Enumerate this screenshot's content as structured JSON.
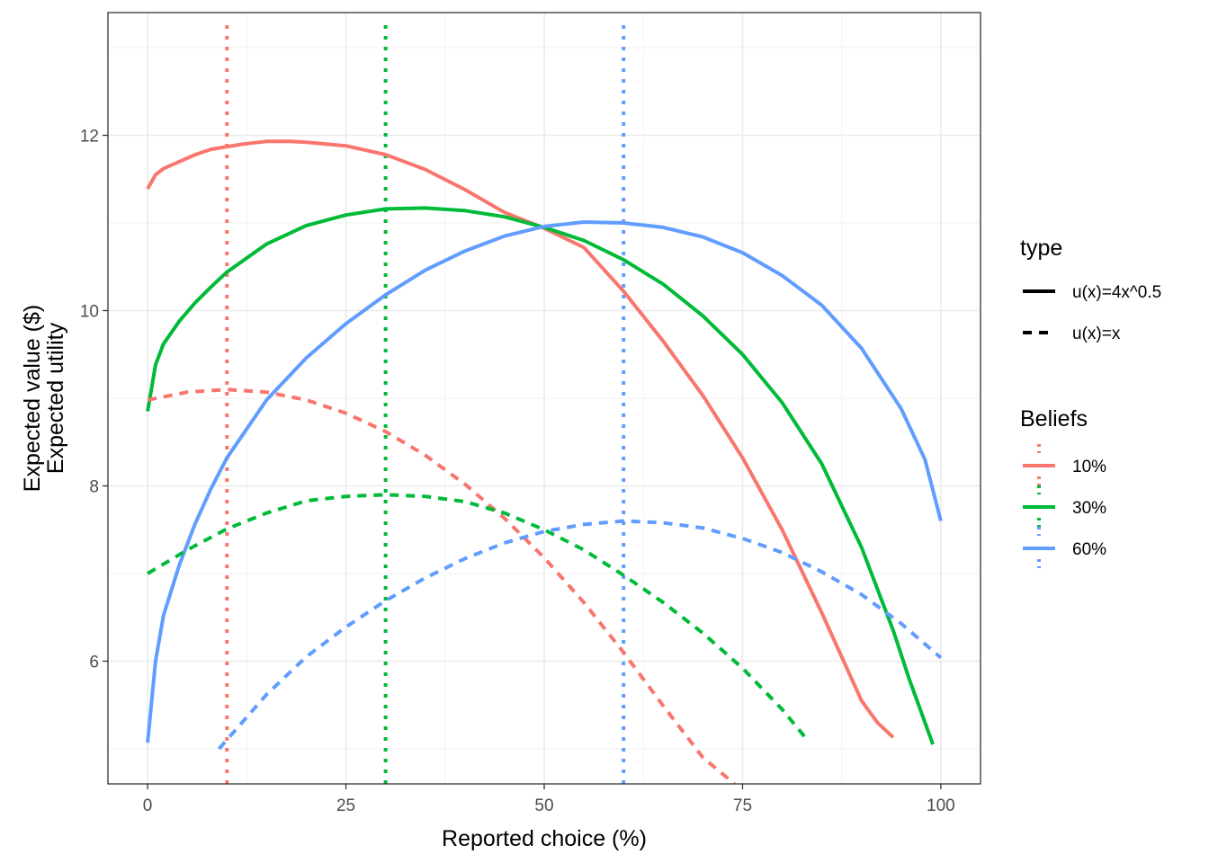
{
  "chart_data": {
    "type": "line",
    "xlabel": "Reported choice (%)",
    "ylabel_lines": [
      "Expected value ($)",
      "Expected utility"
    ],
    "xlim": [
      -5,
      105
    ],
    "ylim": [
      4.6,
      13.4
    ],
    "x_ticks": [
      0,
      25,
      50,
      75,
      100
    ],
    "y_ticks": [
      6,
      8,
      10,
      12
    ],
    "grid": true,
    "legend_position": "right",
    "colors": {
      "10%": "#F8766D",
      "30%": "#00BA38",
      "60%": "#619CFF"
    },
    "legend_type": {
      "title": "type",
      "entries": [
        {
          "label": "u(x)=4x^0.5",
          "line": "solid"
        },
        {
          "label": "u(x)=x",
          "line": "dashed"
        }
      ]
    },
    "legend_beliefs": {
      "title": "Beliefs",
      "entries": [
        {
          "label": "10%",
          "color": "#F8766D"
        },
        {
          "label": "30%",
          "color": "#00BA38"
        },
        {
          "label": "60%",
          "color": "#619CFF"
        }
      ]
    },
    "vlines": [
      {
        "belief": "10%",
        "x": 10
      },
      {
        "belief": "30%",
        "x": 30
      },
      {
        "belief": "60%",
        "x": 60
      }
    ],
    "series": [
      {
        "type": "u(x)=4x^0.5",
        "belief": "10%",
        "x": [
          0,
          1,
          2,
          4,
          6,
          8,
          10,
          12,
          15,
          18,
          20,
          25,
          30,
          35,
          40,
          45,
          50,
          55,
          60,
          65,
          70,
          75,
          80,
          85,
          88,
          90,
          92,
          94
        ],
        "y": [
          11.39,
          11.55,
          11.62,
          11.7,
          11.78,
          11.84,
          11.87,
          11.9,
          11.93,
          11.93,
          11.92,
          11.88,
          11.78,
          11.61,
          11.38,
          11.12,
          10.94,
          10.72,
          10.22,
          9.65,
          9.03,
          8.32,
          7.5,
          6.55,
          5.95,
          5.55,
          5.3,
          5.13
        ]
      },
      {
        "type": "u(x)=4x^0.5",
        "belief": "30%",
        "x": [
          0,
          1,
          2,
          4,
          6,
          8,
          10,
          15,
          20,
          25,
          30,
          35,
          40,
          45,
          50,
          55,
          60,
          65,
          70,
          75,
          80,
          85,
          90,
          94,
          96,
          98,
          99
        ],
        "y": [
          8.85,
          9.38,
          9.62,
          9.88,
          10.09,
          10.27,
          10.44,
          10.76,
          10.97,
          11.09,
          11.16,
          11.17,
          11.14,
          11.07,
          10.95,
          10.8,
          10.58,
          10.3,
          9.94,
          9.5,
          8.95,
          8.25,
          7.3,
          6.35,
          5.8,
          5.3,
          5.05
        ]
      },
      {
        "type": "u(x)=4x^0.5",
        "belief": "60%",
        "x": [
          0,
          1,
          2,
          4,
          6,
          8,
          10,
          15,
          20,
          25,
          30,
          35,
          40,
          45,
          50,
          55,
          60,
          65,
          70,
          75,
          80,
          85,
          90,
          95,
          98,
          100
        ],
        "y": [
          5.07,
          6.0,
          6.52,
          7.1,
          7.57,
          7.97,
          8.32,
          8.98,
          9.46,
          9.85,
          10.18,
          10.46,
          10.68,
          10.85,
          10.96,
          11.01,
          11.0,
          10.95,
          10.84,
          10.66,
          10.4,
          10.06,
          9.57,
          8.88,
          8.3,
          7.6
        ]
      },
      {
        "type": "u(x)=x",
        "belief": "10%",
        "x": [
          0,
          5,
          10,
          15,
          20,
          25,
          30,
          35,
          40,
          45,
          50,
          55,
          60,
          65,
          70,
          74
        ],
        "y": [
          8.98,
          9.07,
          9.1,
          9.07,
          8.98,
          8.83,
          8.62,
          8.35,
          8.02,
          7.63,
          7.18,
          6.67,
          6.1,
          5.49,
          4.9,
          4.6
        ]
      },
      {
        "type": "u(x)=x",
        "belief": "30%",
        "x": [
          0,
          5,
          10,
          15,
          20,
          25,
          30,
          35,
          40,
          45,
          50,
          55,
          60,
          65,
          70,
          75,
          80,
          83
        ],
        "y": [
          7.0,
          7.27,
          7.51,
          7.69,
          7.83,
          7.88,
          7.9,
          7.88,
          7.82,
          7.69,
          7.5,
          7.27,
          6.98,
          6.67,
          6.32,
          5.92,
          5.45,
          5.12
        ]
      },
      {
        "type": "u(x)=x",
        "belief": "60%",
        "x": [
          9,
          15,
          20,
          25,
          30,
          35,
          40,
          45,
          50,
          55,
          60,
          65,
          70,
          75,
          80,
          85,
          90,
          95,
          100
        ],
        "y": [
          5.0,
          5.62,
          6.05,
          6.39,
          6.69,
          6.95,
          7.17,
          7.35,
          7.48,
          7.56,
          7.6,
          7.58,
          7.52,
          7.4,
          7.24,
          7.02,
          6.76,
          6.43,
          6.04
        ]
      }
    ]
  }
}
